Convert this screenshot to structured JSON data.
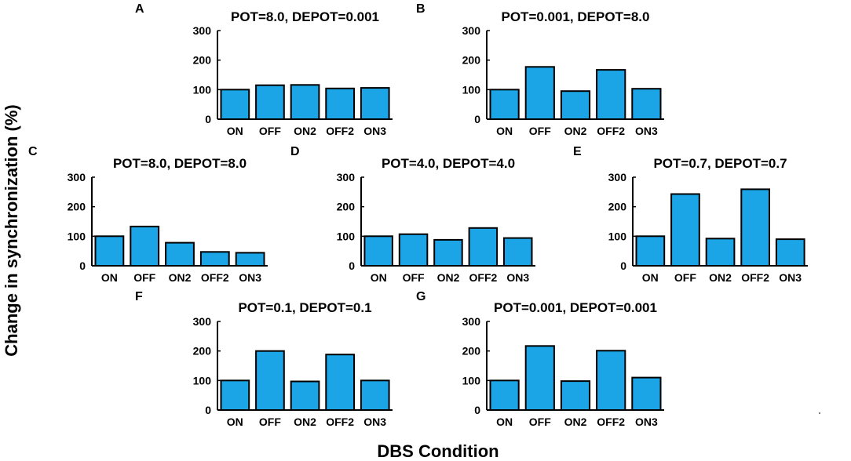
{
  "figure": {
    "ylabel": "Change in synchronization (%)",
    "xlabel": "DBS Condition",
    "bar_color": "#1ba5e6"
  },
  "chart_data": [
    {
      "type": "bar",
      "panel": "A",
      "title": "POT=8.0, DEPOT=0.001",
      "categories": [
        "ON",
        "OFF",
        "ON2",
        "OFF2",
        "ON3"
      ],
      "values": [
        100,
        115,
        116,
        104,
        106
      ],
      "ylim": [
        0,
        300
      ],
      "yticks": [
        0,
        100,
        200,
        300
      ]
    },
    {
      "type": "bar",
      "panel": "B",
      "title": "POT=0.001, DEPOT=8.0",
      "categories": [
        "ON",
        "OFF",
        "ON2",
        "OFF2",
        "ON3"
      ],
      "values": [
        100,
        177,
        95,
        167,
        103
      ],
      "ylim": [
        0,
        300
      ],
      "yticks": [
        0,
        100,
        200,
        300
      ]
    },
    {
      "type": "bar",
      "panel": "C",
      "title": "POT=8.0, DEPOT=8.0",
      "categories": [
        "ON",
        "OFF",
        "ON2",
        "OFF2",
        "ON3"
      ],
      "values": [
        100,
        133,
        78,
        47,
        44
      ],
      "ylim": [
        0,
        300
      ],
      "yticks": [
        0,
        100,
        200,
        300
      ]
    },
    {
      "type": "bar",
      "panel": "D",
      "title": "POT=4.0, DEPOT=4.0",
      "categories": [
        "ON",
        "OFF",
        "ON2",
        "OFF2",
        "ON3"
      ],
      "values": [
        100,
        107,
        88,
        128,
        94
      ],
      "ylim": [
        0,
        300
      ],
      "yticks": [
        0,
        100,
        200,
        300
      ]
    },
    {
      "type": "bar",
      "panel": "E",
      "title": "POT=0.7, DEPOT=0.7",
      "categories": [
        "ON",
        "OFF",
        "ON2",
        "OFF2",
        "ON3"
      ],
      "values": [
        100,
        243,
        92,
        259,
        90
      ],
      "ylim": [
        0,
        300
      ],
      "yticks": [
        0,
        100,
        200,
        300
      ]
    },
    {
      "type": "bar",
      "panel": "F",
      "title": "POT=0.1, DEPOT=0.1",
      "categories": [
        "ON",
        "OFF",
        "ON2",
        "OFF2",
        "ON3"
      ],
      "values": [
        100,
        200,
        97,
        188,
        100
      ],
      "ylim": [
        0,
        300
      ],
      "yticks": [
        0,
        100,
        200,
        300
      ]
    },
    {
      "type": "bar",
      "panel": "G",
      "title": "POT=0.001, DEPOT=0.001",
      "categories": [
        "ON",
        "OFF",
        "ON2",
        "OFF2",
        "ON3"
      ],
      "values": [
        100,
        217,
        98,
        201,
        110
      ],
      "ylim": [
        0,
        300
      ],
      "yticks": [
        0,
        100,
        200,
        300
      ]
    }
  ]
}
